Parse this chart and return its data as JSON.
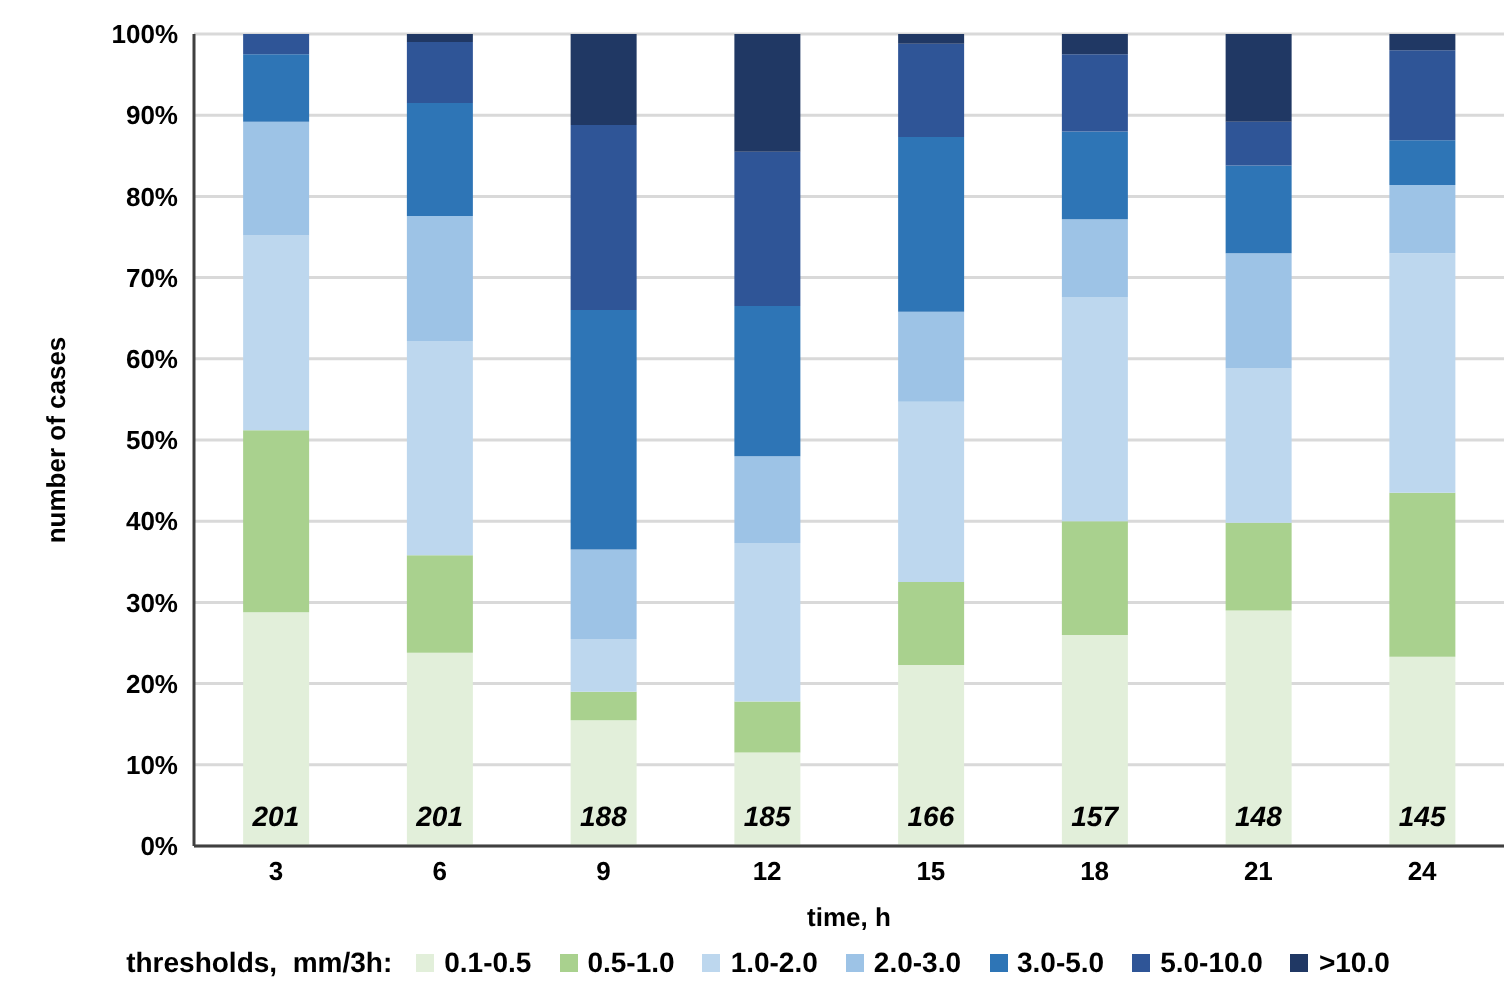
{
  "chart_data": {
    "type": "bar",
    "stacked": true,
    "xlabel": "time, h",
    "ylabel": "number of cases",
    "legend_title": "thresholds,  mm/3h:",
    "legend": "bottom",
    "grid": "y",
    "categories": [
      "3",
      "6",
      "9",
      "12",
      "15",
      "18",
      "21",
      "24"
    ],
    "ylim": [
      0,
      100
    ],
    "yticks": [
      {
        "value": 0,
        "label": "0%"
      },
      {
        "value": 10,
        "label": "10%"
      },
      {
        "value": 20,
        "label": "20%"
      },
      {
        "value": 30,
        "label": "30%"
      },
      {
        "value": 40,
        "label": "40%"
      },
      {
        "value": 50,
        "label": "50%"
      },
      {
        "value": 60,
        "label": "60%"
      },
      {
        "value": 70,
        "label": "70%"
      },
      {
        "value": 80,
        "label": "80%"
      },
      {
        "value": 90,
        "label": "90%"
      },
      {
        "value": 100,
        "label": "100%"
      }
    ],
    "series": [
      {
        "name": "0.1-0.5",
        "color": "#e2efda",
        "values": [
          28.8,
          23.8,
          15.5,
          11.5,
          22.3,
          26,
          29,
          23.3
        ]
      },
      {
        "name": "0.5-1.0",
        "color": "#a9d18e",
        "values": [
          22.4,
          12,
          3.5,
          6.3,
          10.2,
          14,
          10.8,
          20.2
        ]
      },
      {
        "name": "1.0-2.0",
        "color": "#bdd7ee",
        "values": [
          24,
          26.4,
          6.5,
          19.5,
          22.2,
          27.6,
          19,
          29.5
        ]
      },
      {
        "name": "2.0-3.0",
        "color": "#9dc3e6",
        "values": [
          14,
          15.4,
          11,
          10.7,
          11.1,
          9.6,
          14.2,
          8.4
        ]
      },
      {
        "name": "3.0-5.0",
        "color": "#2e75b6",
        "values": [
          8.3,
          13.9,
          29.5,
          18.5,
          21.5,
          10.8,
          10.8,
          5.5
        ]
      },
      {
        "name": "5.0-10.0",
        "color": "#2f5597",
        "values": [
          2.5,
          7.5,
          22.8,
          19,
          11.5,
          9.5,
          5.4,
          11.1
        ]
      },
      {
        "name": ">10.0",
        "color": "#203864",
        "values": [
          0,
          1,
          11.2,
          14.5,
          1.2,
          2.5,
          10.8,
          2
        ]
      }
    ],
    "annotations": [
      "201",
      "201",
      "188",
      "185",
      "166",
      "157",
      "148",
      "145"
    ]
  }
}
